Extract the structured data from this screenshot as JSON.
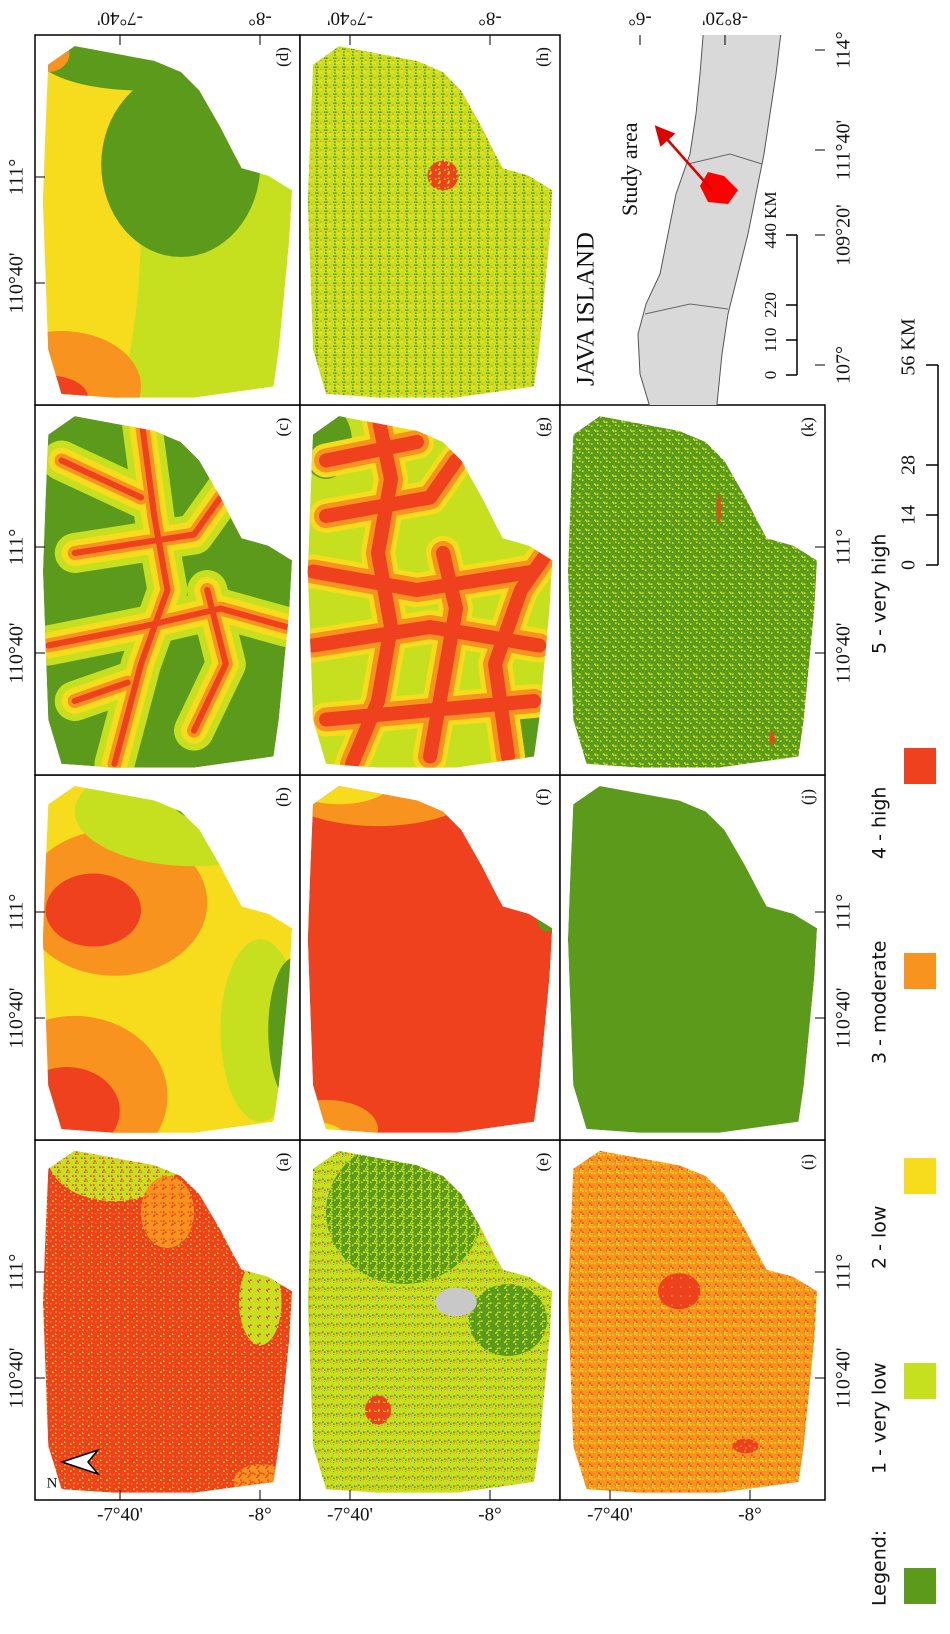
{
  "panels": [
    {
      "label": "(a)"
    },
    {
      "label": "(b)"
    },
    {
      "label": "(c)"
    },
    {
      "label": "(d)"
    },
    {
      "label": "(e)"
    },
    {
      "label": "(f)"
    },
    {
      "label": "(g)"
    },
    {
      "label": "(h)"
    },
    {
      "label": "(i)"
    },
    {
      "label": "(j)"
    },
    {
      "label": "(k)"
    }
  ],
  "axes": {
    "lon": [
      "110°40'",
      "111°"
    ],
    "lat": [
      "-7°40'",
      "-8°"
    ]
  },
  "north": "N",
  "inset": {
    "title": "JAVA ISLAND",
    "annotation": "Study area",
    "scale": [
      "0",
      "110",
      "220",
      "440 KM"
    ],
    "lon": [
      "107°",
      "109°20'",
      "111°40'",
      "114°"
    ],
    "lat": [
      "-6°",
      "-8°20'"
    ]
  },
  "scale_bar": [
    "0",
    "14",
    "28",
    "56 KM"
  ],
  "legend": {
    "title": "Legend:",
    "items": [
      {
        "label": "1 - very low",
        "color": "#5b9a1b"
      },
      {
        "label": "2 - low",
        "color": "#c6e01f"
      },
      {
        "label": "3 - moderate",
        "color": "#f7dc1e"
      },
      {
        "label": "4 - high",
        "color": "#f7931e"
      },
      {
        "label": "5 - very high",
        "color": "#f0411f"
      }
    ]
  }
}
